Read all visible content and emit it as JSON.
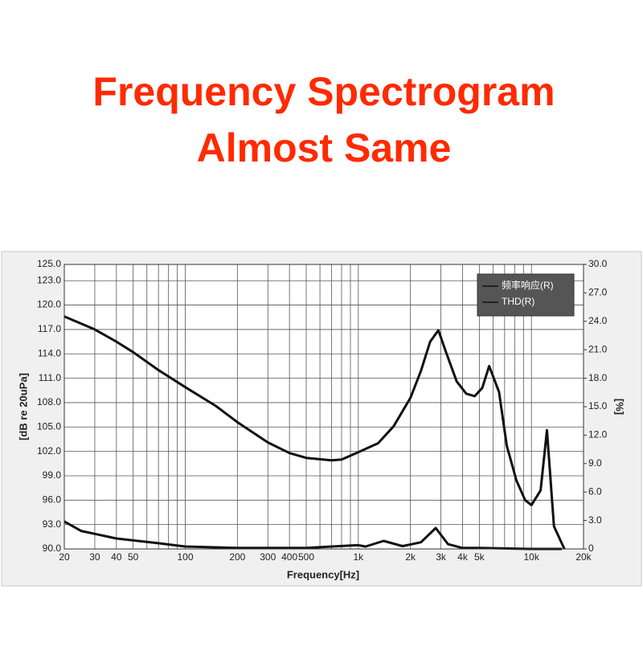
{
  "chart_data": {
    "type": "line",
    "title": "Frequency Spectrogram",
    "subtitle": "Almost Same",
    "x_label": "Frequency[Hz]",
    "y_label": "[dB re 20uPa]",
    "y2_label": "[%]",
    "x_scale": "log",
    "grid": true,
    "legend": "top-right",
    "xlim": [
      20,
      20000
    ],
    "xticks": [
      20,
      30,
      40,
      50,
      100,
      200,
      300,
      400,
      500,
      {
        "value": 1000,
        "label": "1k"
      },
      {
        "value": 2000,
        "label": "2k"
      },
      {
        "value": 3000,
        "label": "3k"
      },
      {
        "value": 4000,
        "label": "4k"
      },
      {
        "value": 5000,
        "label": "5k"
      },
      {
        "value": 10000,
        "label": "10k"
      },
      {
        "value": 20000,
        "label": "20k"
      }
    ],
    "xminorticks": [
      60,
      70,
      80,
      90,
      600,
      700,
      800,
      900,
      6000,
      7000,
      8000,
      9000
    ],
    "ylim": [
      90,
      125
    ],
    "yticks": [
      {
        "value": 90,
        "label": "90.0"
      },
      {
        "value": 93,
        "label": "93.0"
      },
      {
        "value": 96,
        "label": "96.0"
      },
      {
        "value": 99,
        "label": "99.0"
      },
      {
        "value": 102,
        "label": "102.0"
      },
      {
        "value": 105,
        "label": "105.0"
      },
      {
        "value": 108,
        "label": "108.0"
      },
      {
        "value": 111,
        "label": "111.0"
      },
      {
        "value": 114,
        "label": "114.0"
      },
      {
        "value": 117,
        "label": "117.0"
      },
      {
        "value": 120,
        "label": "120.0"
      },
      {
        "value": 123,
        "label": "123.0"
      },
      {
        "value": 125,
        "label": "125.0"
      }
    ],
    "y2lim": [
      0,
      30
    ],
    "y2ticks": [
      0,
      {
        "value": 3,
        "label": "3.0"
      },
      {
        "value": 6,
        "label": "6.0"
      },
      {
        "value": 9,
        "label": "9.0"
      },
      {
        "value": 12,
        "label": "12.0"
      },
      {
        "value": 15,
        "label": "15.0"
      },
      {
        "value": 18,
        "label": "18.0"
      },
      {
        "value": 21,
        "label": "21.0"
      },
      {
        "value": 24,
        "label": "24.0"
      },
      {
        "value": 27,
        "label": "27.0"
      },
      {
        "value": 30,
        "label": "30.0"
      }
    ],
    "series": [
      {
        "name": "频率响应(R)",
        "color": "#111111",
        "x": [
          20,
          30,
          40,
          50,
          70,
          100,
          150,
          200,
          300,
          400,
          500,
          700,
          800,
          1000,
          1300,
          1600,
          2000,
          2300,
          2600,
          2900,
          3200,
          3700,
          4200,
          4700,
          5200,
          5700,
          6500,
          7200,
          8200,
          9200,
          10000,
          11300,
          12300,
          13500,
          15500
        ],
        "values": [
          118.6,
          117.0,
          115.5,
          114.2,
          112.0,
          109.9,
          107.6,
          105.6,
          103.1,
          101.8,
          101.2,
          100.9,
          101.0,
          101.9,
          103.0,
          105.1,
          108.6,
          111.9,
          115.5,
          116.9,
          114.3,
          110.6,
          109.1,
          108.8,
          109.8,
          112.5,
          109.3,
          102.7,
          98.4,
          96.0,
          95.4,
          97.2,
          104.6,
          92.8,
          90.0
        ]
      },
      {
        "name": "THD(R)",
        "color": "#111111",
        "axis": "y2",
        "x": [
          20,
          25,
          40,
          70,
          100,
          200,
          500,
          700,
          1000,
          1100,
          1400,
          1800,
          2300,
          2800,
          3300,
          4000,
          5000,
          10000,
          15000
        ],
        "values": [
          2.9,
          1.9,
          1.1,
          0.6,
          0.25,
          0.1,
          0.1,
          0.25,
          0.4,
          0.25,
          0.85,
          0.3,
          0.7,
          2.2,
          0.5,
          0.1,
          0.1,
          0,
          0
        ]
      }
    ]
  }
}
